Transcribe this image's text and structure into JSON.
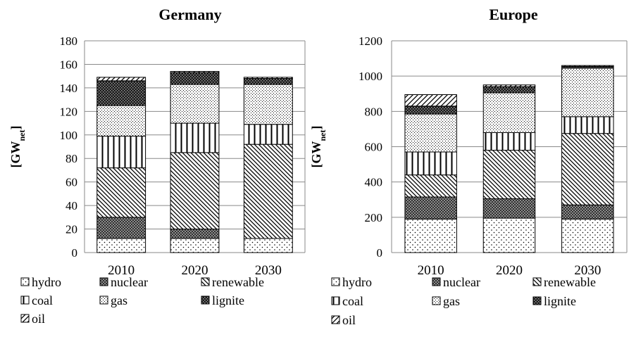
{
  "chart_data": [
    {
      "type": "bar",
      "stacked": true,
      "title": "Germany",
      "ylabel": "[GW",
      "ylabel_sub": "net",
      "ylabel_end": "]",
      "ylim": [
        0,
        180
      ],
      "yticks": [
        0,
        20,
        40,
        60,
        80,
        100,
        120,
        140,
        160,
        180
      ],
      "categories": [
        "2010",
        "2020",
        "2030"
      ],
      "grid": true,
      "legend_position": "bottom",
      "series": [
        {
          "name": "hydro",
          "values": [
            12,
            12,
            12
          ]
        },
        {
          "name": "nuclear",
          "values": [
            18,
            8,
            0
          ]
        },
        {
          "name": "renewable",
          "values": [
            42,
            65,
            80
          ]
        },
        {
          "name": "coal",
          "values": [
            27,
            25,
            17
          ]
        },
        {
          "name": "gas",
          "values": [
            26,
            33,
            34
          ]
        },
        {
          "name": "lignite",
          "values": [
            21,
            10,
            5
          ]
        },
        {
          "name": "oil",
          "values": [
            3,
            1,
            1
          ]
        }
      ]
    },
    {
      "type": "bar",
      "stacked": true,
      "title": "Europe",
      "ylabel": "[GW",
      "ylabel_sub": "net",
      "ylabel_end": "]",
      "ylim": [
        0,
        1200
      ],
      "yticks": [
        0,
        200,
        400,
        600,
        800,
        1000,
        1200
      ],
      "categories": [
        "2010",
        "2020",
        "2030"
      ],
      "grid": true,
      "legend_position": "bottom",
      "series": [
        {
          "name": "hydro",
          "values": [
            190,
            195,
            190
          ]
        },
        {
          "name": "nuclear",
          "values": [
            125,
            110,
            80
          ]
        },
        {
          "name": "renewable",
          "values": [
            125,
            275,
            405
          ]
        },
        {
          "name": "coal",
          "values": [
            130,
            100,
            95
          ]
        },
        {
          "name": "gas",
          "values": [
            215,
            225,
            275
          ]
        },
        {
          "name": "lignite",
          "values": [
            45,
            35,
            10
          ]
        },
        {
          "name": "oil",
          "values": [
            65,
            10,
            5
          ]
        }
      ]
    }
  ]
}
